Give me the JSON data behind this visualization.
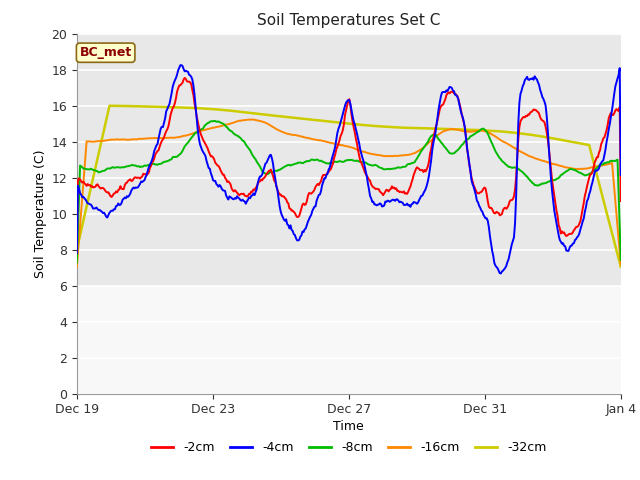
{
  "title": "Soil Temperatures Set C",
  "xlabel": "Time",
  "ylabel": "Soil Temperature (C)",
  "ylim": [
    0,
    20
  ],
  "yticks": [
    0,
    2,
    4,
    6,
    8,
    10,
    12,
    14,
    16,
    18,
    20
  ],
  "annotation_text": "BC_met",
  "annotation_bg": "#ffffcc",
  "annotation_border": "#8B6914",
  "annotation_text_color": "#8B0000",
  "colors": {
    "-2cm": "#ff0000",
    "-4cm": "#0000ff",
    "-8cm": "#00bb00",
    "-16cm": "#ff8800",
    "-32cm": "#cccc00"
  },
  "legend_labels": [
    "-2cm",
    "-4cm",
    "-8cm",
    "-16cm",
    "-32cm"
  ],
  "x_tick_labels": [
    "Dec 19",
    "Dec 23",
    "Dec 27",
    "Dec 31",
    "Jan 4"
  ],
  "x_tick_positions": [
    0,
    4,
    8,
    12,
    16
  ],
  "plot_bg_color": "#e8e8e8",
  "fig_bg_color": "#ffffff",
  "grid_color": "#ffffff",
  "cutoff_y": 6,
  "cutoff_color": "#f0f0f0"
}
